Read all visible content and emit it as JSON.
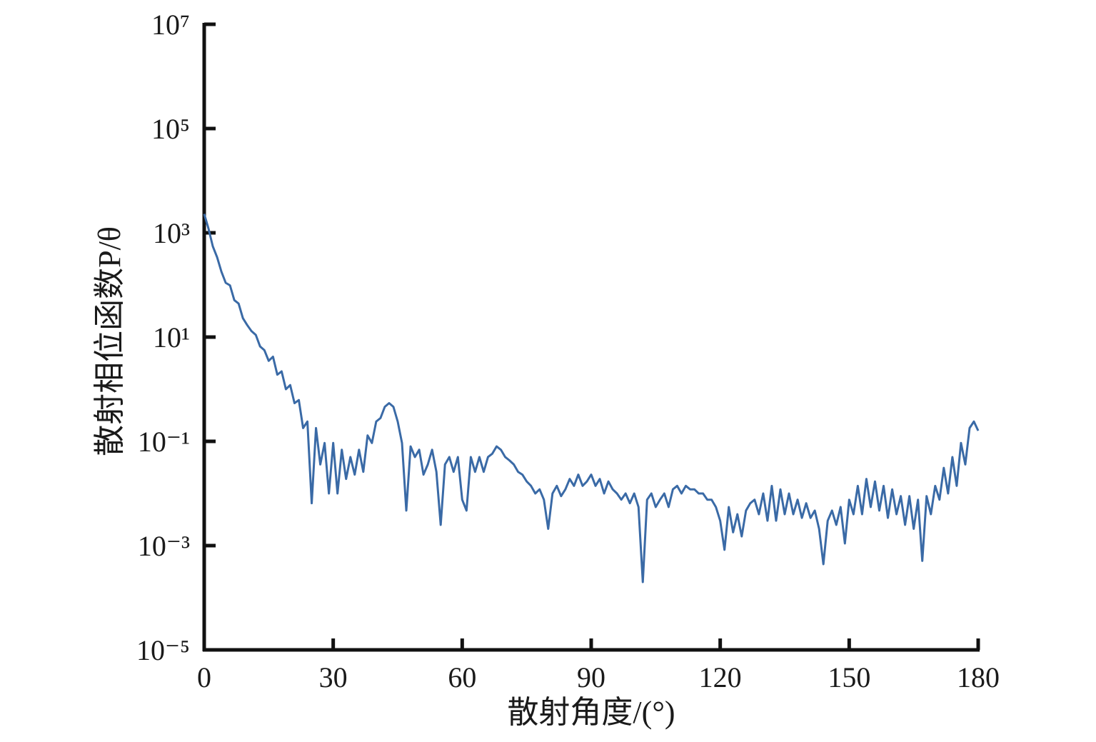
{
  "chart_data": {
    "type": "line",
    "x_label": "散射角度/(°)",
    "y_label": "散射相位函数P/θ",
    "log_y": true,
    "color": "#3a6aa6",
    "xlim": [
      0,
      180
    ],
    "xticks": [
      0,
      30,
      60,
      90,
      120,
      150,
      180
    ],
    "ylim": [
      1e-05,
      10000000
    ],
    "yticks": [
      {
        "value": 1e-05,
        "label": "10⁻⁵"
      },
      {
        "value": 0.001,
        "label": "10⁻³"
      },
      {
        "value": 0.1,
        "label": "10⁻¹"
      },
      {
        "value": 10,
        "label": "10¹"
      },
      {
        "value": 1000,
        "label": "10³"
      },
      {
        "value": 100000,
        "label": "10⁵"
      },
      {
        "value": 10000000,
        "label": "10⁷"
      }
    ],
    "x": [
      0,
      1,
      2,
      3,
      4,
      5,
      6,
      7,
      8,
      9,
      10,
      11,
      12,
      13,
      14,
      15,
      16,
      17,
      18,
      19,
      20,
      21,
      22,
      23,
      24,
      25,
      26,
      27,
      28,
      29,
      30,
      31,
      32,
      33,
      34,
      35,
      36,
      37,
      38,
      39,
      40,
      41,
      42,
      43,
      44,
      45,
      46,
      47,
      48,
      49,
      50,
      51,
      52,
      53,
      54,
      55,
      56,
      57,
      58,
      59,
      60,
      61,
      62,
      63,
      64,
      65,
      66,
      67,
      68,
      69,
      70,
      71,
      72,
      73,
      74,
      75,
      76,
      77,
      78,
      79,
      80,
      81,
      82,
      83,
      84,
      85,
      86,
      87,
      88,
      89,
      90,
      91,
      92,
      93,
      94,
      95,
      96,
      97,
      98,
      99,
      100,
      101,
      102,
      103,
      104,
      105,
      106,
      107,
      108,
      109,
      110,
      111,
      112,
      113,
      114,
      115,
      116,
      117,
      118,
      119,
      120,
      121,
      122,
      123,
      124,
      125,
      126,
      127,
      128,
      129,
      130,
      131,
      132,
      133,
      134,
      135,
      136,
      137,
      138,
      139,
      140,
      141,
      142,
      143,
      144,
      145,
      146,
      147,
      148,
      149,
      150,
      151,
      152,
      153,
      154,
      155,
      156,
      157,
      158,
      159,
      160,
      161,
      162,
      163,
      164,
      165,
      166,
      167,
      168,
      169,
      170,
      171,
      172,
      173,
      174,
      175,
      176,
      177,
      178,
      179,
      180
    ],
    "values": [
      2300,
      1200,
      550,
      340,
      180,
      110,
      98,
      51,
      44,
      23,
      17,
      13,
      11,
      6.6,
      5.6,
      3.5,
      4.2,
      1.9,
      2.2,
      1.0,
      1.2,
      0.54,
      0.62,
      0.18,
      0.24,
      0.0065,
      0.18,
      0.036,
      0.093,
      0.01,
      0.093,
      0.01,
      0.069,
      0.019,
      0.05,
      0.023,
      0.069,
      0.026,
      0.13,
      0.093,
      0.24,
      0.28,
      0.46,
      0.54,
      0.46,
      0.24,
      0.093,
      0.0047,
      0.08,
      0.05,
      0.069,
      0.023,
      0.036,
      0.069,
      0.026,
      0.0025,
      0.036,
      0.05,
      0.026,
      0.05,
      0.0076,
      0.0047,
      0.05,
      0.026,
      0.05,
      0.026,
      0.05,
      0.058,
      0.08,
      0.069,
      0.05,
      0.043,
      0.036,
      0.026,
      0.023,
      0.017,
      0.014,
      0.01,
      0.012,
      0.0076,
      0.0021,
      0.01,
      0.014,
      0.0089,
      0.012,
      0.019,
      0.014,
      0.023,
      0.014,
      0.017,
      0.023,
      0.014,
      0.019,
      0.01,
      0.017,
      0.012,
      0.01,
      0.0076,
      0.01,
      0.0065,
      0.01,
      0.0055,
      0.0002,
      0.0076,
      0.01,
      0.0055,
      0.0076,
      0.01,
      0.0055,
      0.012,
      0.014,
      0.01,
      0.014,
      0.012,
      0.012,
      0.01,
      0.01,
      0.0076,
      0.0076,
      0.0055,
      0.003,
      0.00083,
      0.0055,
      0.0018,
      0.004,
      0.0015,
      0.0047,
      0.0065,
      0.0076,
      0.004,
      0.01,
      0.003,
      0.014,
      0.003,
      0.012,
      0.004,
      0.01,
      0.004,
      0.0076,
      0.0034,
      0.0065,
      0.0034,
      0.0047,
      0.0021,
      0.00044,
      0.003,
      0.0047,
      0.0025,
      0.0055,
      0.0011,
      0.0076,
      0.004,
      0.014,
      0.004,
      0.019,
      0.0055,
      0.017,
      0.0047,
      0.014,
      0.0034,
      0.012,
      0.004,
      0.0089,
      0.0025,
      0.0089,
      0.0021,
      0.0076,
      0.00051,
      0.0089,
      0.004,
      0.014,
      0.0076,
      0.031,
      0.01,
      0.05,
      0.014,
      0.093,
      0.036,
      0.18,
      0.24,
      0.16
    ]
  }
}
